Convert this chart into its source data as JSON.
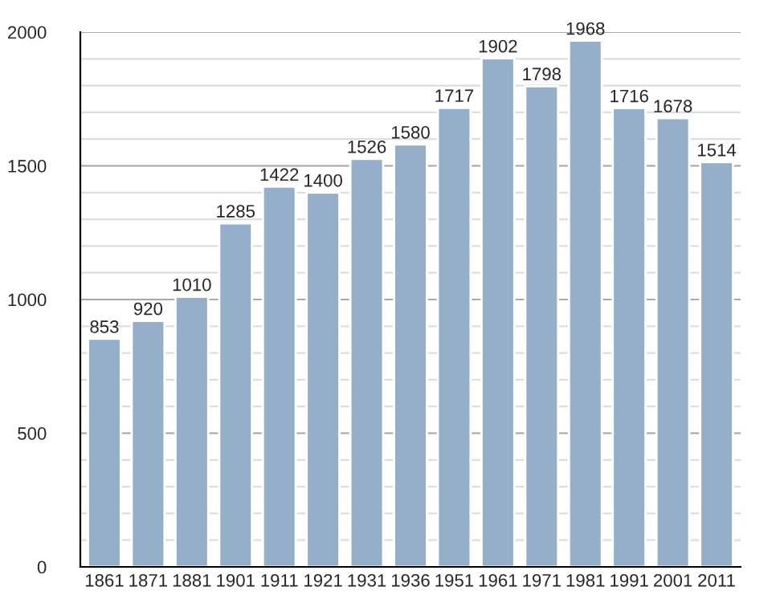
{
  "chart_data": {
    "type": "bar",
    "categories": [
      "1861",
      "1871",
      "1881",
      "1901",
      "1911",
      "1921",
      "1931",
      "1936",
      "1951",
      "1961",
      "1971",
      "1981",
      "1991",
      "2001",
      "2011"
    ],
    "values": [
      853,
      920,
      1010,
      1285,
      1422,
      1400,
      1526,
      1580,
      1717,
      1902,
      1798,
      1968,
      1716,
      1678,
      1514
    ],
    "color": "#95afcb",
    "ylim": [
      0,
      2000
    ],
    "yticks": [
      0,
      {
        "value": 100,
        "label": null
      },
      {
        "value": 200,
        "label": null
      },
      {
        "value": 300,
        "label": null
      },
      {
        "value": 400,
        "label": null
      },
      500,
      {
        "value": 600,
        "label": null
      },
      {
        "value": 700,
        "label": null
      },
      {
        "value": 800,
        "label": null
      },
      {
        "value": 900,
        "label": null
      },
      1000,
      {
        "value": 1100,
        "label": null
      },
      {
        "value": 1200,
        "label": null
      },
      {
        "value": 1300,
        "label": null
      },
      {
        "value": 1400,
        "label": null
      },
      1500,
      {
        "value": 1600,
        "label": null
      },
      {
        "value": 1700,
        "label": null
      },
      {
        "value": 1800,
        "label": null
      },
      {
        "value": 1900,
        "label": null
      },
      2000
    ],
    "grid": "y",
    "data_labels": true
  }
}
